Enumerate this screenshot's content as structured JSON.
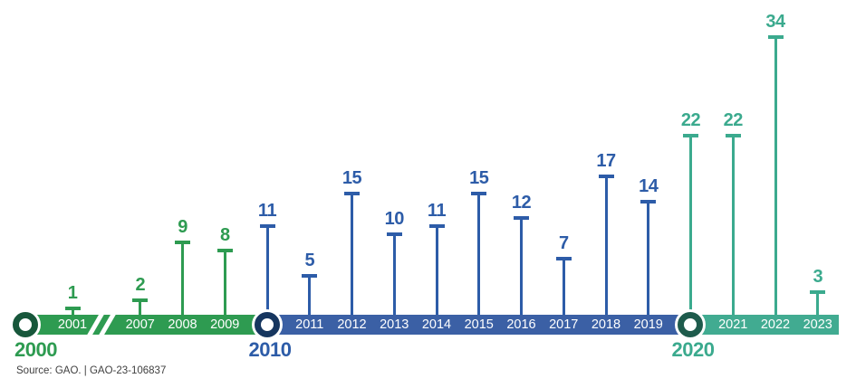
{
  "chart_data": {
    "type": "lollipop_timeline",
    "title": "",
    "ylim": [
      0,
      34
    ],
    "grid": false,
    "axis_break_between": [
      "2001",
      "2007"
    ],
    "eras": {
      "green": {
        "bar": "#2E9B51",
        "stem": "#2E9B51",
        "label": "#2E9B51",
        "ring": "#17573B"
      },
      "blue": {
        "bar": "#3B60A5",
        "stem": "#2D5CA8",
        "label": "#2D5CA8",
        "ring": "#16365F"
      },
      "teal": {
        "bar": "#41AB91",
        "stem": "#3BAA8E",
        "label": "#3BAA8E",
        "ring": "#1E5B4C"
      }
    },
    "decade_markers": [
      {
        "label": "2000",
        "era": "green"
      },
      {
        "label": "2010",
        "era": "blue"
      },
      {
        "label": "2020",
        "era": "teal"
      }
    ],
    "points": [
      {
        "year": "2001",
        "value": 1,
        "era": "green",
        "on_decade": false
      },
      {
        "year": "2007",
        "value": 2,
        "era": "green",
        "on_decade": false
      },
      {
        "year": "2008",
        "value": 9,
        "era": "green",
        "on_decade": false
      },
      {
        "year": "2009",
        "value": 8,
        "era": "green",
        "on_decade": false
      },
      {
        "year": "2010",
        "value": 11,
        "era": "blue",
        "on_decade": true
      },
      {
        "year": "2011",
        "value": 5,
        "era": "blue",
        "on_decade": false
      },
      {
        "year": "2012",
        "value": 15,
        "era": "blue",
        "on_decade": false
      },
      {
        "year": "2013",
        "value": 10,
        "era": "blue",
        "on_decade": false
      },
      {
        "year": "2014",
        "value": 11,
        "era": "blue",
        "on_decade": false
      },
      {
        "year": "2015",
        "value": 15,
        "era": "blue",
        "on_decade": false
      },
      {
        "year": "2016",
        "value": 12,
        "era": "blue",
        "on_decade": false
      },
      {
        "year": "2017",
        "value": 7,
        "era": "blue",
        "on_decade": false
      },
      {
        "year": "2018",
        "value": 17,
        "era": "blue",
        "on_decade": false
      },
      {
        "year": "2019",
        "value": 14,
        "era": "blue",
        "on_decade": false
      },
      {
        "year": "2020",
        "value": 22,
        "era": "teal",
        "on_decade": true
      },
      {
        "year": "2021",
        "value": 22,
        "era": "teal",
        "on_decade": false
      },
      {
        "year": "2022",
        "value": 34,
        "era": "teal",
        "on_decade": false
      },
      {
        "year": "2023",
        "value": 3,
        "era": "teal",
        "on_decade": false
      }
    ]
  },
  "source_note": "Source: GAO. | GAO-23-106837"
}
